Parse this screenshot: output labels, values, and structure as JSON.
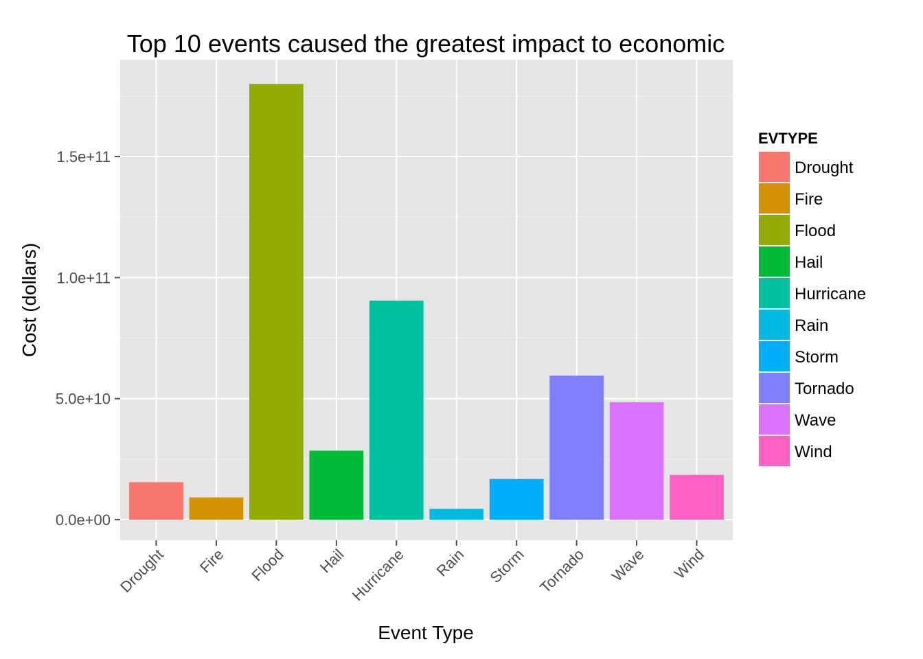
{
  "chart_data": {
    "type": "bar",
    "title": "Top 10 events caused the greatest impact to economic",
    "xlabel": "Event Type",
    "ylabel": "Cost (dollars)",
    "categories": [
      "Drought",
      "Fire",
      "Flood",
      "Hail",
      "Hurricane",
      "Rain",
      "Storm",
      "Tornado",
      "Wave",
      "Wind"
    ],
    "values": [
      15500000000,
      9200000000,
      180000000000,
      28500000000,
      90500000000,
      4500000000,
      16800000000,
      59500000000,
      48500000000,
      18500000000
    ],
    "colors": [
      "#F8766D",
      "#D39200",
      "#93AA00",
      "#00BA38",
      "#00C19F",
      "#00B9E3",
      "#00ADFA",
      "#8080FF",
      "#DB72FB",
      "#FF61C3"
    ],
    "ylim": [
      -8500000000,
      190000000000
    ],
    "yticks": [
      0,
      50000000000,
      100000000000,
      150000000000
    ],
    "ytick_labels": [
      "0.0e+00",
      "5.0e+10",
      "1.0e+11",
      "1.5e+11"
    ],
    "grid": true,
    "legend": {
      "title": "EVTYPE",
      "position": "right",
      "entries": [
        "Drought",
        "Fire",
        "Flood",
        "Hail",
        "Hurricane",
        "Rain",
        "Storm",
        "Tornado",
        "Wave",
        "Wind"
      ]
    }
  }
}
